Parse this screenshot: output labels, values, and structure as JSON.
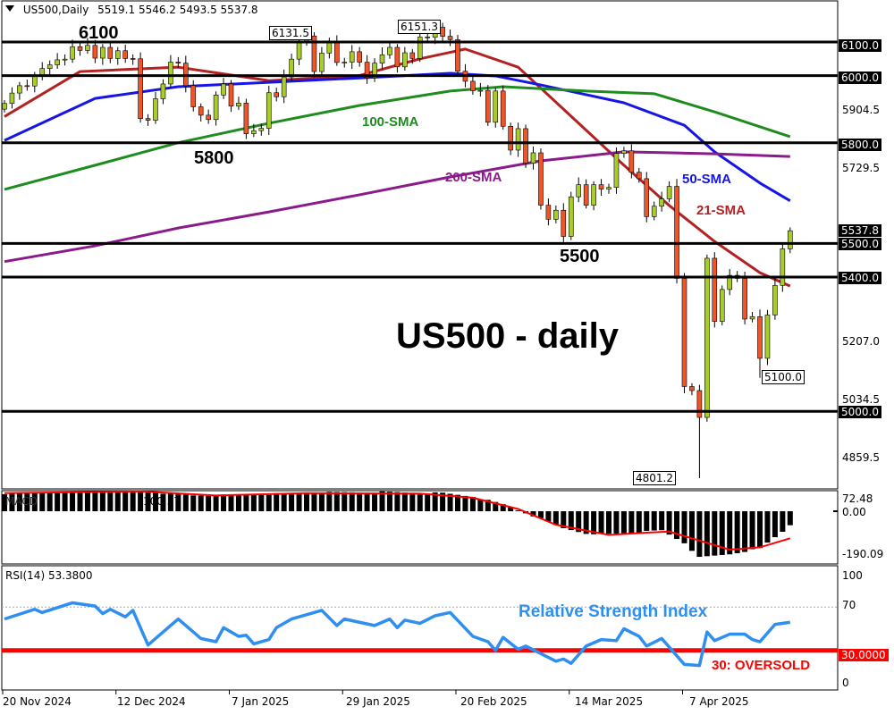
{
  "header": {
    "symbol": "US500,Daily",
    "ohlc": "5519.1 5546.2 5493.5 5537.8",
    "menu_icon": "triangle-down-icon"
  },
  "annotations": {
    "l6100": "6100",
    "l5800": "5800",
    "l5500": "5500",
    "sma100": "100-SMA",
    "sma200": "200-SMA",
    "sma50": "50-SMA",
    "sma21": "21-SMA",
    "title": "US500 - daily",
    "p6131": "6131.5",
    "p6151": "6151.3",
    "p5100": "5100.0",
    "p4801": "4801.2",
    "rsi_title": "Relative Strength Index",
    "oversold": "30: OVERSOLD"
  },
  "colors": {
    "up": "#a8cc2a",
    "down": "#f0552a",
    "sma21": "#b22222",
    "sma50": "#1515e6",
    "sma100": "#1f8c1f",
    "sma200": "#8b1a8b",
    "rsi": "#2f8ff0",
    "oversold": "#ff0000",
    "macd_signal": "#ff0000"
  },
  "price_axis": {
    "labels": [
      "5904.5",
      "5729.5",
      "5207.0",
      "5034.5",
      "4859.5"
    ],
    "boxed": [
      "6100.0",
      "6000.0",
      "5800.0",
      "5537.8",
      "5500.0",
      "5400.0",
      "5000.0"
    ]
  },
  "macd": {
    "label": "100.37",
    "axis": [
      "72.48",
      "0.00",
      "-190.09"
    ]
  },
  "rsi": {
    "label": "RSI(14) 53.3800",
    "axis": [
      "100",
      "70",
      "0"
    ],
    "level_box": "30.0000"
  },
  "dates": [
    "20 Nov 2024",
    "12 Dec 2024",
    "7 Jan 2025",
    "29 Jan 2025",
    "20 Feb 2025",
    "14 Mar 2025",
    "7 Apr 2025"
  ],
  "chart_data": [
    {
      "type": "candlestick",
      "title": "US500 - daily",
      "horizontal_levels": [
        6100,
        6000,
        5800,
        5500,
        5400,
        5000
      ],
      "ylim": [
        4780,
        6230
      ],
      "closes": [
        5917,
        5948,
        5970,
        5969,
        5999,
        6021,
        6032,
        6047,
        6049,
        6086,
        6075,
        6090,
        6052,
        6084,
        6051,
        6074,
        6051,
        6050,
        5872,
        5867,
        5931,
        5975,
        6040,
        6037,
        5970,
        5907,
        5882,
        5869,
        5942,
        5975,
        5909,
        5918,
        5827,
        5836,
        5843,
        5949,
        5937,
        5996,
        6049,
        6101,
        6118,
        6012,
        6067,
        6101,
        6039,
        6040,
        6071,
        6040,
        5994,
        6037,
        6062,
        6084,
        6026,
        6068,
        6051,
        6115,
        6114,
        6144,
        6117,
        6107,
        6013,
        5983,
        5955,
        5956,
        5861,
        5954,
        5849,
        5778,
        5842,
        5739,
        5770,
        5614,
        5572,
        5599,
        5521,
        5639,
        5675,
        5614,
        5675,
        5662,
        5667,
        5768,
        5776,
        5712,
        5693,
        5580,
        5611,
        5633,
        5670,
        5396,
        5074,
        5062,
        4982,
        5456,
        5268,
        5363,
        5405,
        5396,
        5275,
        5282,
        5158,
        5287,
        5375,
        5484,
        5538
      ],
      "extremes": {
        "39": {
          "high": 6131.5
        },
        "57": {
          "high": 6151.3
        },
        "92": {
          "low": 4801.2
        },
        "100": {
          "low": 5100.0
        }
      },
      "sma": [
        {
          "name": "21-SMA",
          "points": [
            [
              0,
              5878
            ],
            [
              10,
              6012
            ],
            [
              23,
              6025
            ],
            [
              35,
              5985
            ],
            [
              47,
              6000
            ],
            [
              55,
              6050
            ],
            [
              61,
              6079
            ],
            [
              68,
              6025
            ],
            [
              75,
              5879
            ],
            [
              82,
              5733
            ],
            [
              88,
              5613
            ],
            [
              94,
              5506
            ],
            [
              100,
              5413
            ],
            [
              104,
              5373
            ]
          ]
        },
        {
          "name": "50-SMA",
          "points": [
            [
              0,
              5807
            ],
            [
              12,
              5932
            ],
            [
              23,
              5967
            ],
            [
              35,
              5980
            ],
            [
              47,
              5993
            ],
            [
              59,
              6007
            ],
            [
              65,
              5999
            ],
            [
              71,
              5972
            ],
            [
              82,
              5919
            ],
            [
              90,
              5852
            ],
            [
              94,
              5773
            ],
            [
              100,
              5680
            ],
            [
              104,
              5627
            ]
          ]
        },
        {
          "name": "100-SMA",
          "points": [
            [
              0,
              5661
            ],
            [
              12,
              5733
            ],
            [
              23,
              5800
            ],
            [
              35,
              5858
            ],
            [
              47,
              5911
            ],
            [
              59,
              5954
            ],
            [
              66,
              5967
            ],
            [
              77,
              5954
            ],
            [
              86,
              5946
            ],
            [
              94,
              5892
            ],
            [
              104,
              5818
            ]
          ]
        },
        {
          "name": "200-SMA",
          "points": [
            [
              0,
              5446
            ],
            [
              12,
              5493
            ],
            [
              23,
              5546
            ],
            [
              35,
              5594
            ],
            [
              47,
              5645
            ],
            [
              59,
              5698
            ],
            [
              71,
              5746
            ],
            [
              82,
              5773
            ],
            [
              94,
              5767
            ],
            [
              104,
              5759
            ]
          ]
        }
      ]
    },
    {
      "type": "bar",
      "title": "MACD",
      "ylim": [
        -190.09,
        72.48
      ],
      "histogram_points": [
        [
          0,
          78
        ],
        [
          10,
          85
        ],
        [
          18,
          88
        ],
        [
          25,
          70
        ],
        [
          32,
          72
        ],
        [
          40,
          82
        ],
        [
          50,
          85
        ],
        [
          58,
          80
        ],
        [
          62,
          65
        ],
        [
          66,
          30
        ],
        [
          70,
          -20
        ],
        [
          74,
          -75
        ],
        [
          78,
          -105
        ],
        [
          83,
          -95
        ],
        [
          87,
          -85
        ],
        [
          90,
          -140
        ],
        [
          92,
          -205
        ],
        [
          96,
          -190
        ],
        [
          100,
          -165
        ],
        [
          103,
          -90
        ],
        [
          104,
          -60
        ]
      ],
      "signal_points": [
        [
          0,
          80
        ],
        [
          18,
          88
        ],
        [
          28,
          70
        ],
        [
          40,
          80
        ],
        [
          55,
          78
        ],
        [
          62,
          60
        ],
        [
          68,
          10
        ],
        [
          73,
          -60
        ],
        [
          80,
          -105
        ],
        [
          85,
          -95
        ],
        [
          88,
          -90
        ],
        [
          91,
          -120
        ],
        [
          96,
          -170
        ],
        [
          100,
          -160
        ],
        [
          104,
          -120
        ]
      ]
    },
    {
      "type": "line",
      "title": "RSI(14)",
      "ylim": [
        0,
        100
      ],
      "levels": [
        70,
        30
      ],
      "points": [
        [
          0,
          59
        ],
        [
          4,
          68
        ],
        [
          5,
          65
        ],
        [
          9,
          74
        ],
        [
          12,
          71
        ],
        [
          13,
          64
        ],
        [
          14,
          68
        ],
        [
          16,
          61
        ],
        [
          17,
          67
        ],
        [
          19,
          35
        ],
        [
          23,
          59
        ],
        [
          26,
          41
        ],
        [
          28,
          38
        ],
        [
          29,
          51
        ],
        [
          31,
          43
        ],
        [
          32,
          44
        ],
        [
          33,
          36
        ],
        [
          35,
          40
        ],
        [
          36,
          51
        ],
        [
          38,
          59
        ],
        [
          42,
          67
        ],
        [
          44,
          53
        ],
        [
          45,
          59
        ],
        [
          49,
          53
        ],
        [
          51,
          59
        ],
        [
          52,
          51
        ],
        [
          53,
          58
        ],
        [
          55,
          55
        ],
        [
          57,
          62
        ],
        [
          59,
          65
        ],
        [
          62,
          43
        ],
        [
          64,
          38
        ],
        [
          65,
          30
        ],
        [
          66,
          42
        ],
        [
          68,
          31
        ],
        [
          69,
          34
        ],
        [
          73,
          20
        ],
        [
          74,
          22
        ],
        [
          75,
          18
        ],
        [
          77,
          34
        ],
        [
          79,
          40
        ],
        [
          81,
          39
        ],
        [
          82,
          50
        ],
        [
          84,
          43
        ],
        [
          85,
          34
        ],
        [
          87,
          41
        ],
        [
          90,
          17
        ],
        [
          92,
          16
        ],
        [
          93,
          47
        ],
        [
          94,
          39
        ],
        [
          96,
          45
        ],
        [
          98,
          45
        ],
        [
          99,
          40
        ],
        [
          100,
          38
        ],
        [
          102,
          54
        ],
        [
          104,
          56
        ]
      ]
    }
  ]
}
